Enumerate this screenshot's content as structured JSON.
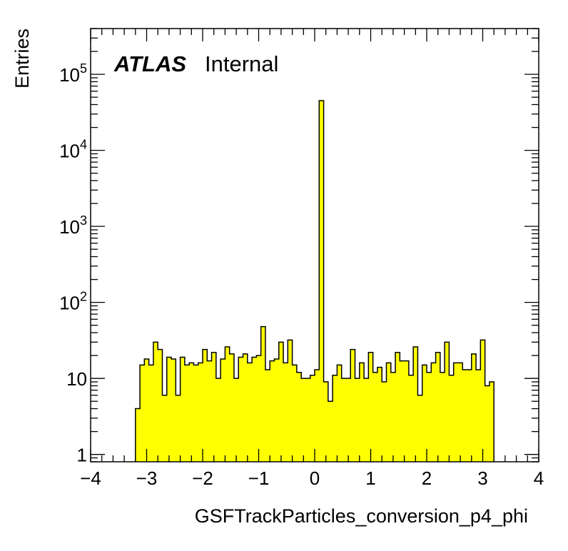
{
  "chart_data": {
    "type": "bar",
    "style": "histogram",
    "fill_color": "#ffff00",
    "line_color": "#000000",
    "xlabel": "GSFTrackParticles_conversion_p4_phi",
    "ylabel": "Entries",
    "xlim": [
      -4,
      4
    ],
    "ylim": [
      0.8,
      400000
    ],
    "yscale": "log",
    "grid": false,
    "legend": "none",
    "x_ticks": [
      -4,
      -3,
      -2,
      -1,
      0,
      1,
      2,
      3,
      4
    ],
    "x_tick_labels": [
      "−4",
      "−3",
      "−2",
      "−1",
      "0",
      "1",
      "2",
      "3",
      "4"
    ],
    "y_ticks": [
      1,
      10,
      100,
      1000,
      10000,
      100000
    ],
    "y_tick_labels": [
      {
        "base": "1",
        "exp": ""
      },
      {
        "base": "10",
        "exp": ""
      },
      {
        "base": "10",
        "exp": "2"
      },
      {
        "base": "10",
        "exp": "3"
      },
      {
        "base": "10",
        "exp": "4"
      },
      {
        "base": "10",
        "exp": "5"
      }
    ],
    "bin_start": -3.2,
    "bin_width": 0.08,
    "values": [
      4,
      15,
      18,
      15,
      30,
      24,
      6,
      19,
      18,
      6,
      19,
      15,
      16,
      15,
      16,
      24,
      17,
      22,
      10,
      18,
      26,
      21,
      10,
      19,
      21,
      16,
      19,
      20,
      48,
      13,
      17,
      18,
      30,
      16,
      32,
      15,
      12,
      10,
      10,
      11,
      13,
      45000,
      9,
      5,
      11,
      15,
      10,
      10,
      24,
      10,
      16,
      10,
      22,
      12,
      14,
      9,
      16,
      12,
      22,
      17,
      17,
      11,
      26,
      6,
      15,
      12,
      16,
      22,
      12,
      30,
      11,
      16,
      16,
      13,
      13,
      21,
      13,
      32,
      8,
      9
    ],
    "annotations": [
      {
        "text": "ATLAS",
        "style": "bold-italic"
      },
      {
        "text": "Internal",
        "style": "normal"
      }
    ]
  }
}
